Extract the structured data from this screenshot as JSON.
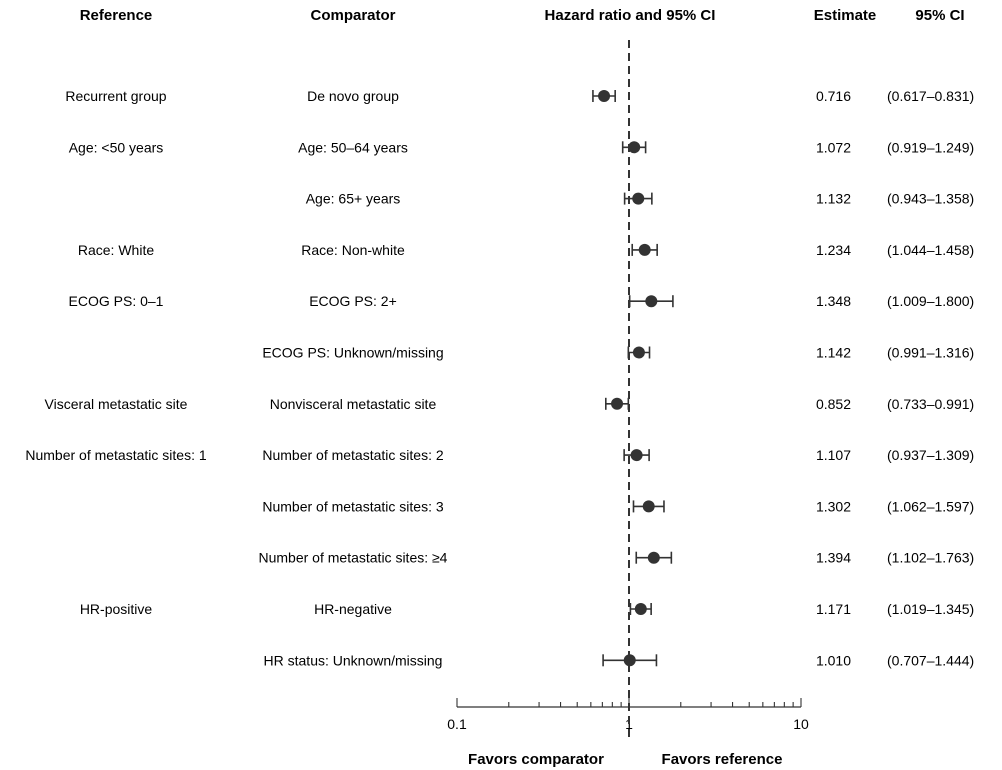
{
  "chart_data": {
    "type": "forest",
    "headers": {
      "reference": "Reference",
      "comparator": "Comparator",
      "hr": "Hazard ratio and 95% CI",
      "estimate": "Estimate",
      "ci": "95% CI"
    },
    "rows": [
      {
        "reference": "Recurrent group",
        "comparator": "De novo group",
        "estimate": 0.716,
        "lower": 0.617,
        "upper": 0.831,
        "estimate_text": "0.716",
        "ci_text": "(0.617–0.831)"
      },
      {
        "reference": "Age: <50 years",
        "comparator": "Age: 50–64 years",
        "estimate": 1.072,
        "lower": 0.919,
        "upper": 1.249,
        "estimate_text": "1.072",
        "ci_text": "(0.919–1.249)"
      },
      {
        "reference": "",
        "comparator": "Age: 65+ years",
        "estimate": 1.132,
        "lower": 0.943,
        "upper": 1.358,
        "estimate_text": "1.132",
        "ci_text": "(0.943–1.358)"
      },
      {
        "reference": "Race: White",
        "comparator": "Race: Non-white",
        "estimate": 1.234,
        "lower": 1.044,
        "upper": 1.458,
        "estimate_text": "1.234",
        "ci_text": "(1.044–1.458)"
      },
      {
        "reference": "ECOG PS: 0–1",
        "comparator": "ECOG PS: 2+",
        "estimate": 1.348,
        "lower": 1.009,
        "upper": 1.8,
        "estimate_text": "1.348",
        "ci_text": "(1.009–1.800)"
      },
      {
        "reference": "",
        "comparator": "ECOG PS: Unknown/missing",
        "estimate": 1.142,
        "lower": 0.991,
        "upper": 1.316,
        "estimate_text": "1.142",
        "ci_text": "(0.991–1.316)"
      },
      {
        "reference": "Visceral metastatic site",
        "comparator": "Nonvisceral metastatic site",
        "estimate": 0.852,
        "lower": 0.733,
        "upper": 0.991,
        "estimate_text": "0.852",
        "ci_text": "(0.733–0.991)"
      },
      {
        "reference": "Number of metastatic sites: 1",
        "comparator": "Number of metastatic sites: 2",
        "estimate": 1.107,
        "lower": 0.937,
        "upper": 1.309,
        "estimate_text": "1.107",
        "ci_text": "(0.937–1.309)"
      },
      {
        "reference": "",
        "comparator": "Number of metastatic sites: 3",
        "estimate": 1.302,
        "lower": 1.062,
        "upper": 1.597,
        "estimate_text": "1.302",
        "ci_text": "(1.062–1.597)"
      },
      {
        "reference": "",
        "comparator": "Number of metastatic sites: ≥4",
        "estimate": 1.394,
        "lower": 1.102,
        "upper": 1.763,
        "estimate_text": "1.394",
        "ci_text": "(1.102–1.763)"
      },
      {
        "reference": "HR-positive",
        "comparator": "HR-negative",
        "estimate": 1.171,
        "lower": 1.019,
        "upper": 1.345,
        "estimate_text": "1.171",
        "ci_text": "(1.019–1.345)"
      },
      {
        "reference": "",
        "comparator": "HR status: Unknown/missing",
        "estimate": 1.01,
        "lower": 0.707,
        "upper": 1.444,
        "estimate_text": "1.010",
        "ci_text": "(0.707–1.444)"
      }
    ],
    "x_axis": {
      "scale": "log",
      "range": [
        0.1,
        10
      ],
      "major_ticks": [
        0.1,
        1,
        10
      ],
      "tick_labels": [
        "0.1",
        "1",
        "10"
      ],
      "reference_line": 1
    },
    "favors_left": "Favors comparator",
    "favors_right": "Favors reference",
    "colors": {
      "marker": "#333333",
      "text": "#1a1a1a"
    }
  }
}
